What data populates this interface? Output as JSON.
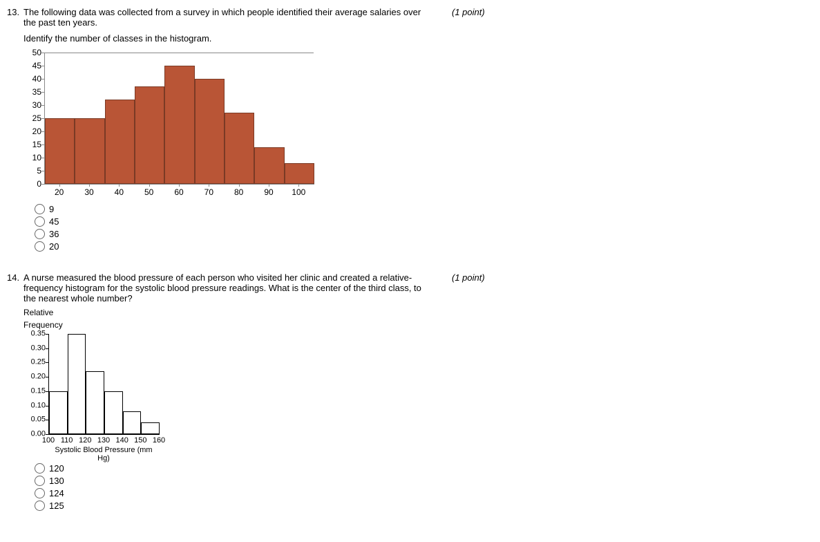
{
  "q13": {
    "number": "13.",
    "text": "The following data was collected from a survey in which people identified their average salaries over the past ten years.",
    "points": "(1 point)",
    "instruction": "Identify the number of classes in the histogram.",
    "chart": {
      "type": "histogram",
      "bar_color": "#b95536",
      "bar_border": "#7a3a25",
      "y": {
        "min": 0,
        "max": 50,
        "step": 5,
        "ticks": [
          "0",
          "5",
          "10",
          "15",
          "20",
          "25",
          "30",
          "35",
          "40",
          "45",
          "50"
        ]
      },
      "x": {
        "ticks": [
          "20",
          "30",
          "40",
          "50",
          "60",
          "70",
          "80",
          "90",
          "100"
        ]
      },
      "bars": [
        25,
        25,
        32,
        37,
        45,
        40,
        27,
        14,
        8
      ]
    },
    "options": [
      "9",
      "45",
      "36",
      "20"
    ]
  },
  "q14": {
    "number": "14.",
    "text": "A nurse measured the blood pressure of each person who visited her clinic and created a relative-frequency histogram for the systolic blood pressure readings. What is the center of the third class, to the nearest whole number?",
    "points": "(1 point)",
    "chart": {
      "type": "histogram",
      "ytitle1": "Relative",
      "ytitle2": "Frequency",
      "xtitle": "Systolic Blood Pressure (mm Hg)",
      "y": {
        "min": 0,
        "max": 0.35,
        "step": 0.05,
        "ticks": [
          "0.00",
          "0.05",
          "0.10",
          "0.15",
          "0.20",
          "0.25",
          "0.30",
          "0.35"
        ]
      },
      "x": {
        "ticks": [
          "100",
          "110",
          "120",
          "130",
          "140",
          "150",
          "160"
        ]
      },
      "bars": [
        0.15,
        0.35,
        0.22,
        0.15,
        0.08,
        0.04
      ]
    },
    "options": [
      "120",
      "130",
      "124",
      "125"
    ]
  }
}
